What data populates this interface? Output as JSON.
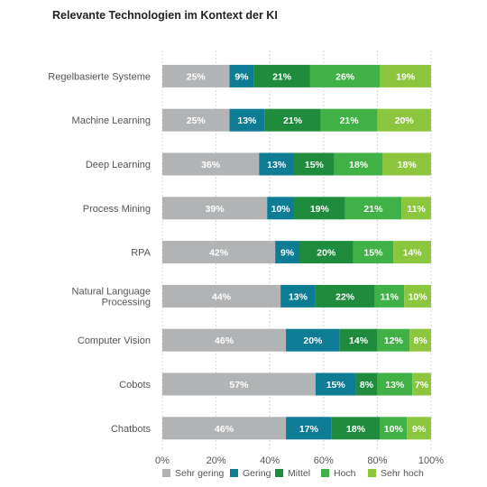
{
  "chart_data": {
    "type": "bar",
    "orientation": "horizontal-stacked",
    "title": "Relevante Technologien im Kontext der KI",
    "categories": [
      "Regelbasierte Systeme",
      "Machine Learning",
      "Deep Learning",
      "Process Mining",
      "RPA",
      "Natural Language Processing",
      "Computer Vision",
      "Cobots",
      "Chatbots"
    ],
    "category_display": [
      [
        "Regelbasierte Systeme"
      ],
      [
        "Machine Learning"
      ],
      [
        "Deep Learning"
      ],
      [
        "Process Mining"
      ],
      [
        "RPA"
      ],
      [
        "Natural Language",
        "Processing"
      ],
      [
        "Computer Vision"
      ],
      [
        "Cobots"
      ],
      [
        "Chatbots"
      ]
    ],
    "series": [
      {
        "name": "Sehr gering",
        "color": "#b1b3b5",
        "values": [
          25,
          25,
          36,
          39,
          42,
          44,
          46,
          57,
          46
        ]
      },
      {
        "name": "Gering",
        "color": "#0e7c95",
        "values": [
          9,
          13,
          13,
          10,
          9,
          13,
          20,
          15,
          17
        ]
      },
      {
        "name": "Mittel",
        "color": "#1e8c3c",
        "values": [
          21,
          21,
          15,
          19,
          20,
          22,
          14,
          8,
          18
        ]
      },
      {
        "name": "Hoch",
        "color": "#3fb146",
        "values": [
          26,
          21,
          18,
          21,
          15,
          11,
          12,
          13,
          10
        ]
      },
      {
        "name": "Sehr hoch",
        "color": "#8cc63e",
        "values": [
          19,
          20,
          18,
          11,
          14,
          10,
          8,
          7,
          9
        ]
      }
    ],
    "xlim": [
      0,
      100
    ],
    "xticks": [
      "0%",
      "20%",
      "40%",
      "60%",
      "80%",
      "100%"
    ],
    "value_suffix": "%",
    "grid": "vertical dashed",
    "legend_position": "bottom"
  }
}
